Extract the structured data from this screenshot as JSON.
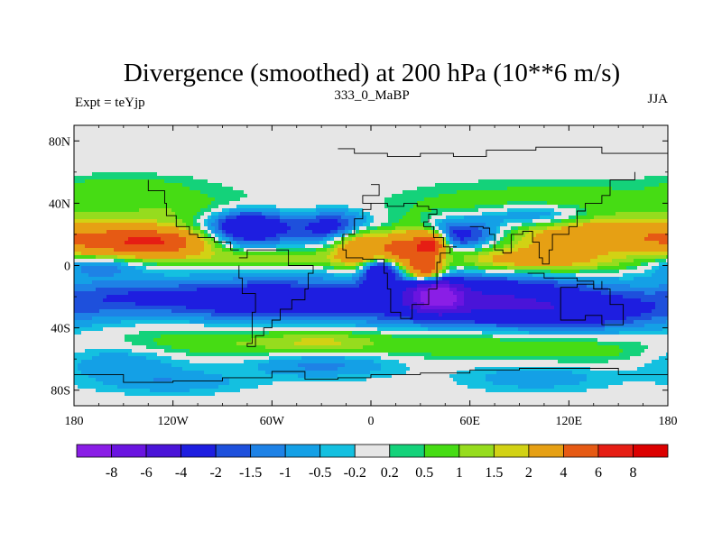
{
  "chart_data": {
    "type": "heatmap",
    "title": "Divergence (smoothed) at 200 hPa (10**6 m/s)",
    "left_label": "Expt = teYjp",
    "center_label": "333_0_MaBP",
    "right_label": "JJA",
    "xaxis": {
      "range": [
        -180,
        180
      ],
      "ticks": [
        {
          "value": -180,
          "label": "180"
        },
        {
          "value": -120,
          "label": "120W"
        },
        {
          "value": -60,
          "label": "60W"
        },
        {
          "value": 0,
          "label": "0"
        },
        {
          "value": 60,
          "label": "60E"
        },
        {
          "value": 120,
          "label": "120E"
        },
        {
          "value": 180,
          "label": "180"
        }
      ]
    },
    "yaxis": {
      "range": [
        -90,
        90
      ],
      "ticks": [
        {
          "value": 80,
          "label": "80N"
        },
        {
          "value": 40,
          "label": "40N"
        },
        {
          "value": 0,
          "label": "0"
        },
        {
          "value": -40,
          "label": "40S"
        },
        {
          "value": -80,
          "label": "80S"
        }
      ]
    },
    "colorbar": {
      "levels": [
        "-8",
        "-6",
        "-4",
        "-2",
        "-1.5",
        "-1",
        "-0.5",
        "-0.2",
        "0.2",
        "0.5",
        "1",
        "1.5",
        "2",
        "4",
        "6",
        "8"
      ],
      "colors": [
        "#8a1ee6",
        "#6a14e0",
        "#4a14d8",
        "#1e1ee0",
        "#1e50dc",
        "#1e82e6",
        "#14a0e6",
        "#14c0e0",
        "#e6e6e6",
        "#14d27a",
        "#46dc14",
        "#96dc1e",
        "#d2d214",
        "#e6a014",
        "#e65a14",
        "#e61e14",
        "#dc0000"
      ]
    },
    "field_features": [
      {
        "lon": -150,
        "lat": 15,
        "sx": 30,
        "sy": 7,
        "value": 4
      },
      {
        "lon": -125,
        "lat": 15,
        "sx": 20,
        "sy": 6,
        "value": 3
      },
      {
        "lon": -165,
        "lat": 0,
        "sx": 18,
        "sy": 5,
        "value": -1.5
      },
      {
        "lon": -110,
        "lat": 35,
        "sx": 50,
        "sy": 8,
        "value": 1
      },
      {
        "lon": -150,
        "lat": 50,
        "sx": 30,
        "sy": 6,
        "value": 0.8
      },
      {
        "lon": -75,
        "lat": 25,
        "sx": 18,
        "sy": 8,
        "value": -4
      },
      {
        "lon": -20,
        "lat": 25,
        "sx": 18,
        "sy": 7,
        "value": -3
      },
      {
        "lon": -5,
        "lat": 12,
        "sx": 12,
        "sy": 10,
        "value": 4
      },
      {
        "lon": 15,
        "lat": 10,
        "sx": 8,
        "sy": 5,
        "value": 2
      },
      {
        "lon": 5,
        "lat": -2,
        "sx": 8,
        "sy": 6,
        "value": -4
      },
      {
        "lon": 25,
        "lat": 12,
        "sx": 10,
        "sy": 9,
        "value": 4
      },
      {
        "lon": 37,
        "lat": 14,
        "sx": 6,
        "sy": 5,
        "value": 6
      },
      {
        "lon": 33,
        "lat": -2,
        "sx": 7,
        "sy": 5,
        "value": 5
      },
      {
        "lon": 55,
        "lat": 20,
        "sx": 18,
        "sy": 8,
        "value": -3
      },
      {
        "lon": 60,
        "lat": 35,
        "sx": 30,
        "sy": 10,
        "value": 1
      },
      {
        "lon": 100,
        "lat": 32,
        "sx": 25,
        "sy": 6,
        "value": -2
      },
      {
        "lon": 120,
        "lat": 42,
        "sx": 30,
        "sy": 7,
        "value": 1
      },
      {
        "lon": 140,
        "lat": 20,
        "sx": 40,
        "sy": 8,
        "value": 3.5
      },
      {
        "lon": 120,
        "lat": 2,
        "sx": 30,
        "sy": 5,
        "value": 1.5
      },
      {
        "lon": 80,
        "lat": 5,
        "sx": 30,
        "sy": 6,
        "value": 2
      },
      {
        "lon": -60,
        "lat": 5,
        "sx": 40,
        "sy": 4,
        "value": 1.5
      },
      {
        "lon": -150,
        "lat": -20,
        "sx": 30,
        "sy": 8,
        "value": -1.5
      },
      {
        "lon": -70,
        "lat": -22,
        "sx": 40,
        "sy": 9,
        "value": -3
      },
      {
        "lon": 60,
        "lat": -22,
        "sx": 55,
        "sy": 11,
        "value": -4
      },
      {
        "lon": 40,
        "lat": -20,
        "sx": 10,
        "sy": 6,
        "value": -8
      },
      {
        "lon": 130,
        "lat": -30,
        "sx": 40,
        "sy": 8,
        "value": -2
      },
      {
        "lon": -100,
        "lat": -50,
        "sx": 40,
        "sy": 7,
        "value": 1
      },
      {
        "lon": -30,
        "lat": -50,
        "sx": 25,
        "sy": 6,
        "value": 1.5
      },
      {
        "lon": 50,
        "lat": -50,
        "sx": 40,
        "sy": 7,
        "value": 1
      },
      {
        "lon": 130,
        "lat": -55,
        "sx": 30,
        "sy": 6,
        "value": 0.8
      },
      {
        "lon": -150,
        "lat": -62,
        "sx": 30,
        "sy": 8,
        "value": -1
      },
      {
        "lon": -30,
        "lat": -63,
        "sx": 30,
        "sy": 6,
        "value": -1.5
      },
      {
        "lon": 100,
        "lat": -72,
        "sx": 30,
        "sy": 6,
        "value": -1
      },
      {
        "lon": -120,
        "lat": -75,
        "sx": 30,
        "sy": 5,
        "value": -1
      }
    ],
    "continent_outlines": [
      [
        [
          -20,
          75
        ],
        [
          -10,
          72
        ],
        [
          10,
          70
        ],
        [
          30,
          72
        ],
        [
          50,
          70
        ],
        [
          70,
          74
        ],
        [
          100,
          76
        ],
        [
          140,
          72
        ],
        [
          180,
          70
        ]
      ],
      [
        [
          0,
          52
        ],
        [
          5,
          45
        ],
        [
          -5,
          40
        ],
        [
          10,
          38
        ],
        [
          20,
          40
        ],
        [
          28,
          38
        ],
        [
          35,
          36
        ],
        [
          40,
          33
        ],
        [
          35,
          28
        ],
        [
          32,
          25
        ],
        [
          38,
          18
        ],
        [
          44,
          12
        ],
        [
          52,
          12
        ],
        [
          48,
          8
        ],
        [
          42,
          2
        ],
        [
          40,
          -5
        ],
        [
          40,
          -15
        ],
        [
          35,
          -25
        ],
        [
          25,
          -34
        ],
        [
          18,
          -30
        ],
        [
          12,
          -15
        ],
        [
          10,
          -5
        ],
        [
          8,
          4
        ],
        [
          -5,
          5
        ],
        [
          -15,
          10
        ],
        [
          -17,
          20
        ],
        [
          -10,
          30
        ],
        [
          -5,
          36
        ],
        [
          0,
          40
        ]
      ],
      [
        [
          60,
          25
        ],
        [
          68,
          24
        ],
        [
          72,
          20
        ],
        [
          75,
          10
        ],
        [
          80,
          8
        ],
        [
          85,
          20
        ],
        [
          92,
          22
        ],
        [
          98,
          15
        ],
        [
          102,
          5
        ],
        [
          104,
          1
        ],
        [
          108,
          10
        ],
        [
          110,
          20
        ],
        [
          120,
          25
        ],
        [
          125,
          35
        ],
        [
          130,
          40
        ],
        [
          140,
          45
        ],
        [
          145,
          55
        ],
        [
          160,
          60
        ]
      ],
      [
        [
          95,
          -5
        ],
        [
          105,
          -8
        ],
        [
          115,
          -8
        ],
        [
          125,
          -10
        ],
        [
          135,
          -15
        ],
        [
          140,
          -10
        ]
      ],
      [
        [
          115,
          -20
        ],
        [
          115,
          -35
        ],
        [
          130,
          -32
        ],
        [
          140,
          -38
        ],
        [
          150,
          -38
        ],
        [
          153,
          -25
        ],
        [
          145,
          -15
        ],
        [
          135,
          -12
        ],
        [
          125,
          -14
        ],
        [
          115,
          -20
        ]
      ],
      [
        [
          -80,
          5
        ],
        [
          -75,
          10
        ],
        [
          -60,
          10
        ],
        [
          -50,
          0
        ],
        [
          -35,
          -5
        ],
        [
          -38,
          -15
        ],
        [
          -40,
          -22
        ],
        [
          -48,
          -28
        ],
        [
          -55,
          -35
        ],
        [
          -60,
          -40
        ],
        [
          -65,
          -45
        ],
        [
          -70,
          -52
        ],
        [
          -75,
          -50
        ],
        [
          -72,
          -40
        ],
        [
          -72,
          -30
        ],
        [
          -70,
          -18
        ],
        [
          -78,
          -8
        ],
        [
          -80,
          0
        ]
      ],
      [
        [
          -80,
          10
        ],
        [
          -85,
          15
        ],
        [
          -95,
          18
        ],
        [
          -105,
          20
        ],
        [
          -110,
          25
        ],
        [
          -118,
          32
        ],
        [
          -124,
          40
        ],
        [
          -125,
          48
        ],
        [
          -135,
          55
        ]
      ],
      [
        [
          -180,
          -70
        ],
        [
          -150,
          -75
        ],
        [
          -120,
          -74
        ],
        [
          -90,
          -72
        ],
        [
          -60,
          -68
        ],
        [
          -40,
          -73
        ],
        [
          -20,
          -72
        ],
        [
          0,
          -70
        ],
        [
          30,
          -69
        ],
        [
          60,
          -67
        ],
        [
          90,
          -66
        ],
        [
          120,
          -66
        ],
        [
          150,
          -70
        ],
        [
          180,
          -75
        ]
      ]
    ]
  }
}
